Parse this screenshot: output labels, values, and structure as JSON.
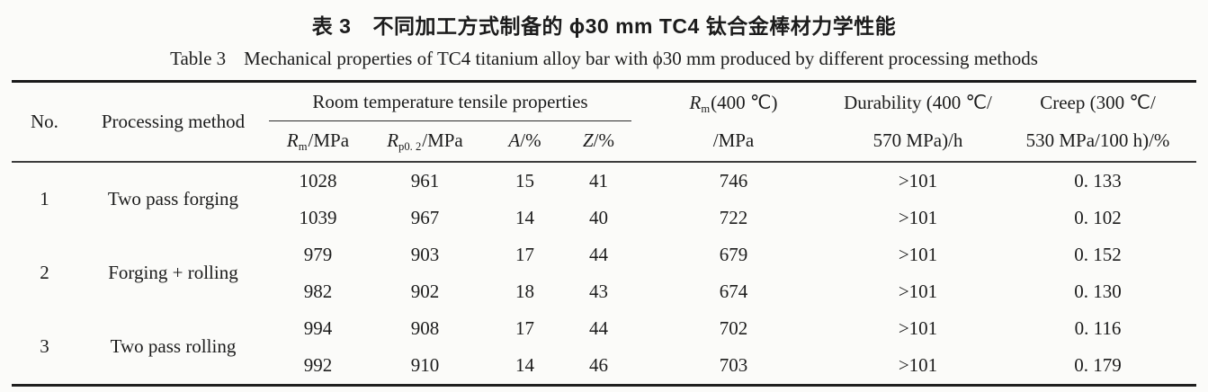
{
  "page": {
    "background_color": "#fbfbf9",
    "text_color": "#1c1c1c",
    "rule_color": "#1a1a1a"
  },
  "titles": {
    "chinese_label": "表 3",
    "chinese_text": "不同加工方式制备的 ϕ30 mm TC4 钛合金棒材力学性能",
    "english_label": "Table 3",
    "english_text": "Mechanical properties of TC4 titanium alloy bar with ϕ30 mm produced by different processing methods"
  },
  "table": {
    "headers": {
      "no": "No.",
      "processing_method": "Processing method",
      "room_temp_group": "Room temperature tensile properties",
      "rm": {
        "sym": "R",
        "sub": "m",
        "rest": "/MPa"
      },
      "rp02": {
        "sym": "R",
        "sub": "p0. 2",
        "rest": "/MPa"
      },
      "a": {
        "sym": "A",
        "rest": "/%"
      },
      "z": {
        "sym": "Z",
        "rest": "/%"
      },
      "rm400": {
        "sym": "R",
        "sub": "m",
        "rest": "(400 ℃)",
        "line2": "/MPa"
      },
      "durability": {
        "line1": "Durability (400 ℃/",
        "line2": "570 MPa)/h"
      },
      "creep": {
        "line1": "Creep (300 ℃/",
        "line2": "530 MPa/100 h)/%"
      }
    },
    "groups": [
      {
        "no": "1",
        "method": "Two pass forging",
        "rows": [
          [
            "1028",
            "961",
            "15",
            "41",
            "746",
            ">101",
            "0. 133"
          ],
          [
            "1039",
            "967",
            "14",
            "40",
            "722",
            ">101",
            "0. 102"
          ]
        ]
      },
      {
        "no": "2",
        "method": "Forging + rolling",
        "rows": [
          [
            "979",
            "903",
            "17",
            "44",
            "679",
            ">101",
            "0. 152"
          ],
          [
            "982",
            "902",
            "18",
            "43",
            "674",
            ">101",
            "0. 130"
          ]
        ]
      },
      {
        "no": "3",
        "method": "Two pass rolling",
        "rows": [
          [
            "994",
            "908",
            "17",
            "44",
            "702",
            ">101",
            "0. 116"
          ],
          [
            "992",
            "910",
            "14",
            "46",
            "703",
            ">101",
            "0. 179"
          ]
        ]
      }
    ]
  }
}
